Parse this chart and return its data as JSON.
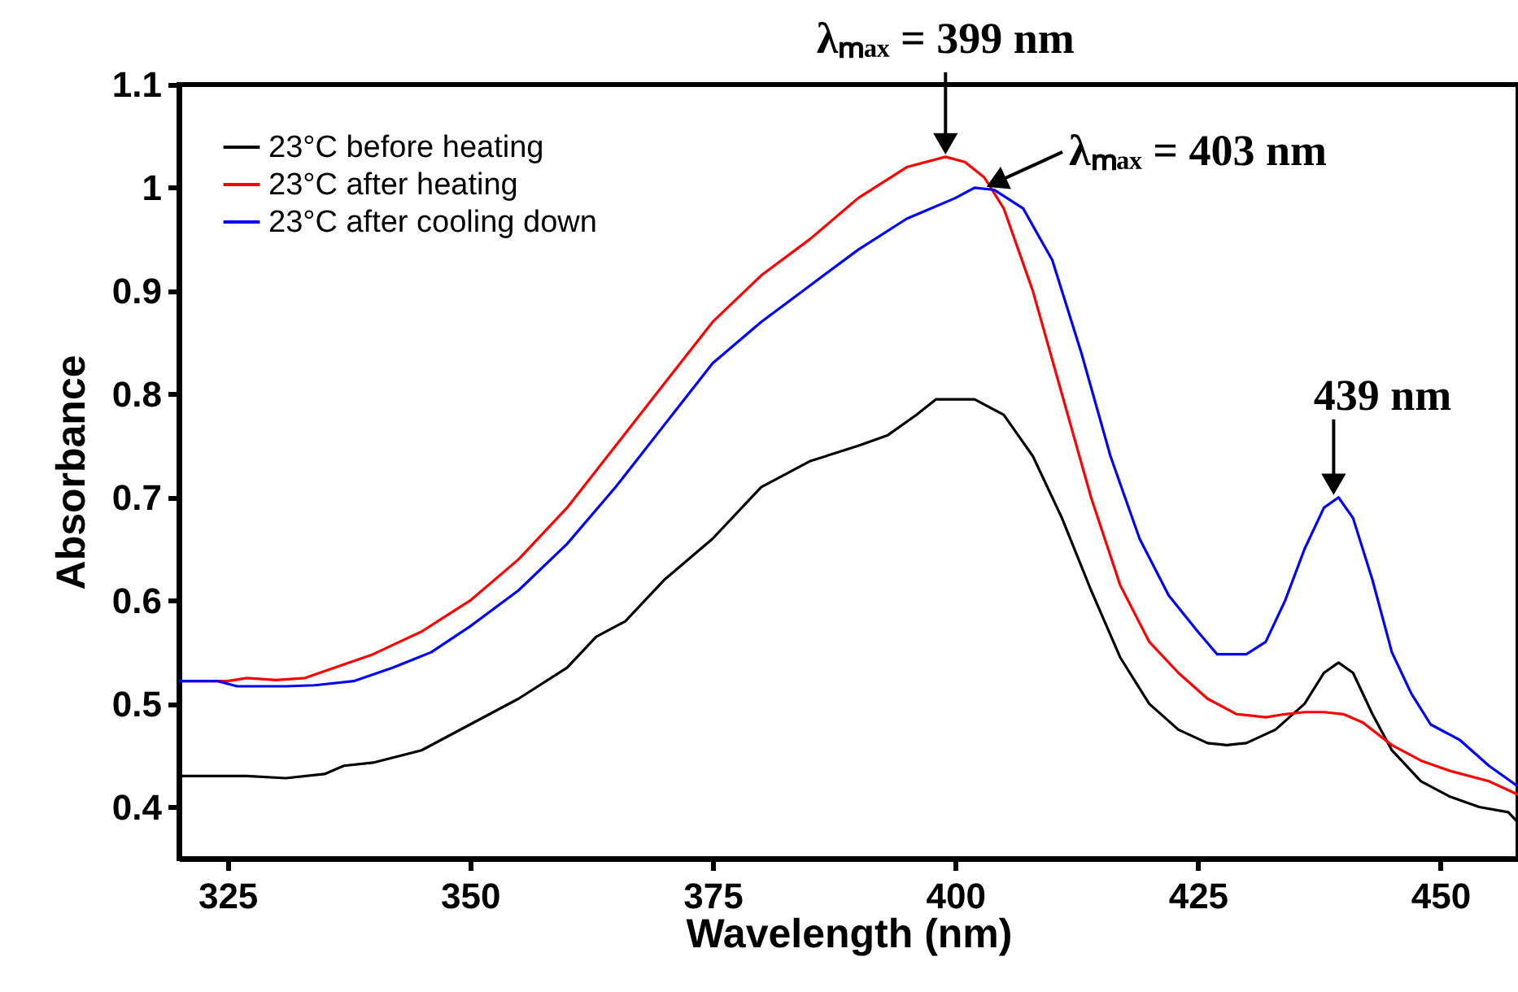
{
  "chart_data": {
    "type": "line",
    "xlabel": "Wavelength (nm)",
    "ylabel": "Absorbance",
    "xlim": [
      320,
      458
    ],
    "ylim": [
      0.35,
      1.1
    ],
    "xticks": [
      325,
      350,
      375,
      400,
      425,
      450
    ],
    "yticks": [
      0.4,
      0.5,
      0.6,
      0.7,
      0.8,
      0.9,
      1,
      1.1
    ],
    "grid": false,
    "legend": "top left",
    "line_style": "solid",
    "marker": "none",
    "series": [
      {
        "name": "23°C before heating",
        "color": "#000000",
        "x": [
          320,
          327,
          331,
          335,
          337,
          340,
          345,
          350,
          355,
          360,
          363,
          366,
          370,
          375,
          380,
          385,
          390,
          393,
          396,
          398,
          402,
          405,
          408,
          411,
          414,
          417,
          420,
          423,
          426,
          428,
          430,
          433,
          436,
          438,
          439.5,
          441,
          443,
          445,
          448,
          451,
          454,
          457,
          458
        ],
        "values": [
          0.43,
          0.43,
          0.428,
          0.432,
          0.44,
          0.443,
          0.455,
          0.48,
          0.505,
          0.535,
          0.565,
          0.58,
          0.62,
          0.66,
          0.71,
          0.735,
          0.75,
          0.76,
          0.78,
          0.795,
          0.795,
          0.78,
          0.74,
          0.68,
          0.61,
          0.545,
          0.5,
          0.475,
          0.462,
          0.46,
          0.462,
          0.475,
          0.5,
          0.53,
          0.54,
          0.53,
          0.49,
          0.455,
          0.425,
          0.41,
          0.4,
          0.395,
          0.385
        ]
      },
      {
        "name": "23°C after heating",
        "color": "#ff0000",
        "x": [
          320,
          325,
          327,
          330,
          333,
          336,
          340,
          345,
          350,
          355,
          360,
          365,
          370,
          375,
          380,
          385,
          390,
          395,
          399,
          401,
          403,
          405,
          408,
          411,
          414,
          417,
          420,
          423,
          426,
          429,
          432,
          434,
          436,
          438,
          440,
          442,
          445,
          448,
          451,
          455,
          458
        ],
        "values": [
          0.522,
          0.522,
          0.525,
          0.523,
          0.525,
          0.535,
          0.548,
          0.57,
          0.6,
          0.64,
          0.69,
          0.75,
          0.81,
          0.87,
          0.915,
          0.95,
          0.99,
          1.02,
          1.03,
          1.025,
          1.01,
          0.98,
          0.9,
          0.8,
          0.7,
          0.615,
          0.56,
          0.53,
          0.505,
          0.49,
          0.487,
          0.49,
          0.492,
          0.492,
          0.49,
          0.482,
          0.46,
          0.445,
          0.435,
          0.425,
          0.412
        ]
      },
      {
        "name": "23°C after cooling down",
        "color": "#0000ff",
        "x": [
          320,
          324,
          326,
          331,
          334,
          338,
          342,
          346,
          350,
          355,
          360,
          365,
          370,
          375,
          380,
          385,
          390,
          395,
          400,
          402,
          404,
          407,
          410,
          413,
          416,
          419,
          422,
          425,
          427,
          430,
          432,
          434,
          436,
          438,
          439.5,
          441,
          443,
          445,
          447,
          449,
          452,
          455,
          458
        ],
        "values": [
          0.522,
          0.522,
          0.517,
          0.517,
          0.518,
          0.522,
          0.535,
          0.55,
          0.575,
          0.61,
          0.655,
          0.71,
          0.77,
          0.83,
          0.87,
          0.905,
          0.94,
          0.97,
          0.99,
          1.0,
          0.998,
          0.98,
          0.93,
          0.84,
          0.74,
          0.66,
          0.605,
          0.57,
          0.548,
          0.548,
          0.56,
          0.6,
          0.65,
          0.69,
          0.7,
          0.68,
          0.62,
          0.55,
          0.51,
          0.48,
          0.465,
          0.44,
          0.42
        ]
      }
    ],
    "annotations": [
      {
        "text": "λₘₐₓ = 399 nm",
        "x": 399,
        "y": 1.03
      },
      {
        "text": "λₘₐₓ = 403 nm",
        "x": 403,
        "y": 1.0
      },
      {
        "text": "439 nm",
        "x": 439,
        "y": 0.7
      }
    ]
  }
}
